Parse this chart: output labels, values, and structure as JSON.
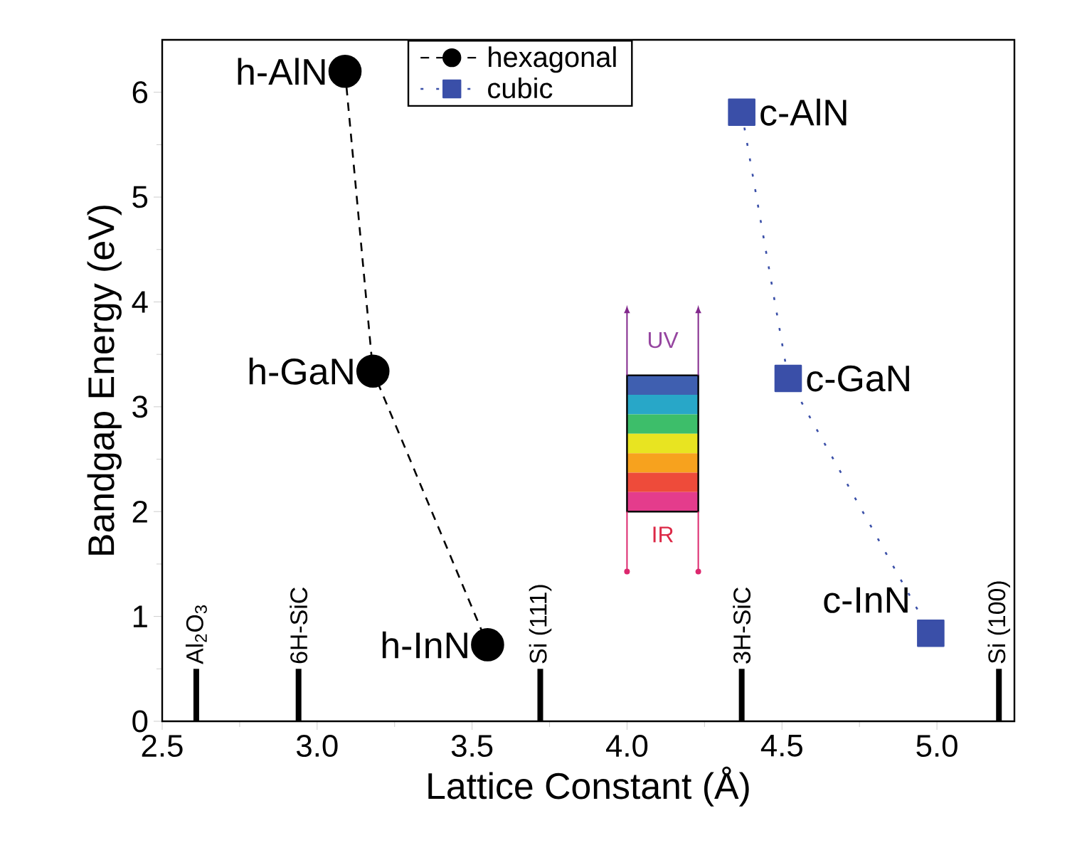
{
  "chart_data": {
    "type": "line",
    "xlabel": "Lattice Constant (Å)",
    "ylabel": "Bandgap Energy (eV)",
    "xlim": [
      2.5,
      5.25
    ],
    "ylim": [
      0,
      6.5
    ],
    "xticks": [
      {
        "value": 2.5,
        "label": "2.5"
      },
      {
        "value": 3,
        "label": "3.0"
      },
      {
        "value": 3.5,
        "label": "3.5"
      },
      {
        "value": 4,
        "label": "4.0"
      },
      {
        "value": 4.5,
        "label": "4.5"
      },
      {
        "value": 5,
        "label": "5.0"
      }
    ],
    "yticks": [
      0,
      1,
      2,
      3,
      4,
      5,
      6
    ],
    "grid": false,
    "legend": "top",
    "series": [
      {
        "name": "hexagonal",
        "color": "#000000",
        "x": [
          3.09,
          3.18,
          3.55
        ],
        "values": [
          6.2,
          3.34,
          0.73
        ],
        "marker": "circle",
        "line_style": "dashed"
      },
      {
        "name": "cubic",
        "color": "#3a4fa8",
        "x": [
          4.37,
          4.52,
          4.98
        ],
        "values": [
          5.81,
          3.27,
          0.84
        ],
        "marker": "square",
        "line_style": "dotted"
      },
      {
        "type": "bar",
        "color": "#000000",
        "x": [
          2.61,
          2.94,
          3.72,
          4.37,
          5.2
        ],
        "values": [
          0.5,
          0.5,
          0.5,
          0.5,
          0.5
        ]
      }
    ],
    "annotations": [
      {
        "text": "h-AlN",
        "x": 3.09,
        "y": 6.2
      },
      {
        "text": "h-GaN",
        "x": 3.18,
        "y": 3.34
      },
      {
        "text": "h-InN",
        "x": 3.55,
        "y": 0.73
      },
      {
        "text": "c-AlN",
        "x": 4.37,
        "y": 5.81
      },
      {
        "text": "c-GaN",
        "x": 4.52,
        "y": 3.27
      },
      {
        "text": "c-InN",
        "x": 4.98,
        "y": 0.84
      },
      {
        "text": "Al$_{2}$O$_{3}$",
        "x": 2.61,
        "y": 0.5
      },
      {
        "text": "6H-SiC",
        "x": 2.94,
        "y": 0.5
      },
      {
        "text": "Si (111)",
        "x": 3.72,
        "y": 0.5
      },
      {
        "text": "3H-SiC",
        "x": 4.37,
        "y": 0.5
      },
      {
        "text": "Si (100)",
        "x": 5.2,
        "y": 0.5
      },
      "UV",
      "IR"
    ]
  }
}
